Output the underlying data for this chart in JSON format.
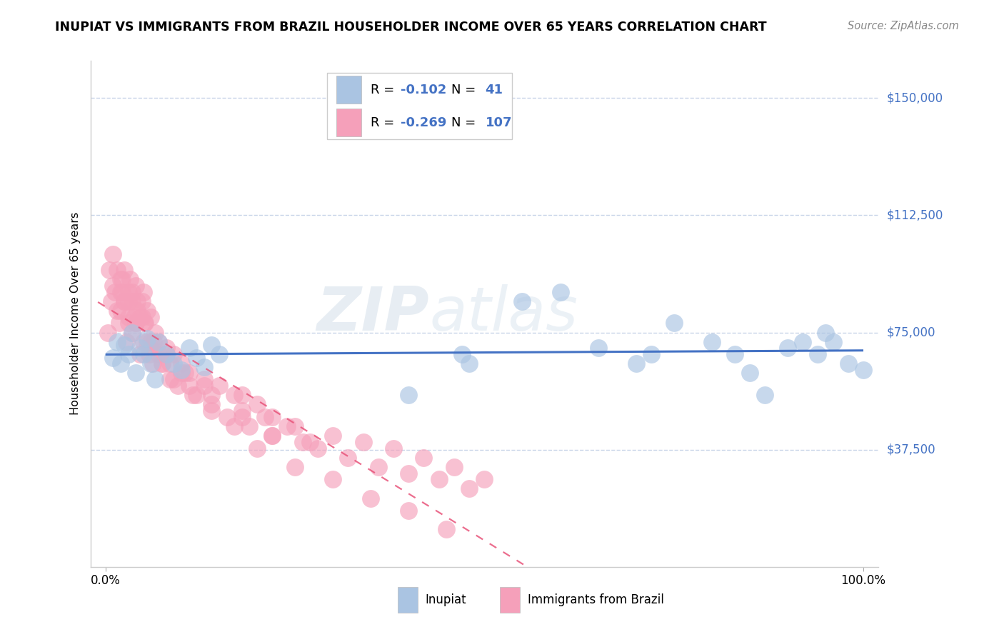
{
  "title": "INUPIAT VS IMMIGRANTS FROM BRAZIL HOUSEHOLDER INCOME OVER 65 YEARS CORRELATION CHART",
  "source": "Source: ZipAtlas.com",
  "ylabel": "Householder Income Over 65 years",
  "legend_label1": "Inupiat",
  "legend_label2": "Immigrants from Brazil",
  "r1": "-0.102",
  "n1": "41",
  "r2": "-0.269",
  "n2": "107",
  "ytick_labels": [
    "$37,500",
    "$75,000",
    "$112,500",
    "$150,000"
  ],
  "ytick_values": [
    37500,
    75000,
    112500,
    150000
  ],
  "ylim": [
    0,
    162000
  ],
  "xlim": [
    -2,
    102
  ],
  "color_inupiat": "#aac4e2",
  "color_brazil": "#f5a0ba",
  "line_color_inupiat": "#4472c4",
  "line_color_brazil": "#e8547a",
  "background_color": "#ffffff",
  "watermark": "ZIPatlas",
  "accent_color": "#4472c4",
  "grid_color": "#c8d4e8",
  "inupiat_x": [
    1.0,
    1.5,
    2.0,
    2.5,
    3.0,
    3.5,
    4.0,
    4.5,
    5.0,
    5.5,
    6.0,
    6.5,
    7.0,
    8.0,
    9.0,
    10.0,
    11.0,
    12.0,
    13.0,
    14.0,
    15.0,
    40.0,
    47.0,
    48.0,
    55.0,
    60.0,
    65.0,
    70.0,
    72.0,
    75.0,
    80.0,
    83.0,
    85.0,
    87.0,
    90.0,
    92.0,
    94.0,
    95.0,
    96.0,
    98.0,
    100.0
  ],
  "inupiat_y": [
    67000,
    72000,
    65000,
    71000,
    68000,
    75000,
    62000,
    70000,
    68000,
    73000,
    65000,
    60000,
    72000,
    68000,
    65000,
    63000,
    70000,
    67000,
    64000,
    71000,
    68000,
    55000,
    68000,
    65000,
    85000,
    88000,
    70000,
    65000,
    68000,
    78000,
    72000,
    68000,
    62000,
    55000,
    70000,
    72000,
    68000,
    75000,
    72000,
    65000,
    63000
  ],
  "brazil_x": [
    0.3,
    0.5,
    0.8,
    1.0,
    1.0,
    1.2,
    1.5,
    1.5,
    1.8,
    2.0,
    2.0,
    2.2,
    2.5,
    2.5,
    2.8,
    3.0,
    3.0,
    3.2,
    3.5,
    3.5,
    3.8,
    4.0,
    4.0,
    4.2,
    4.5,
    4.5,
    4.8,
    5.0,
    5.0,
    5.2,
    5.5,
    5.5,
    5.8,
    6.0,
    6.0,
    6.2,
    6.5,
    7.0,
    7.5,
    8.0,
    8.5,
    9.0,
    9.5,
    10.0,
    10.5,
    11.0,
    12.0,
    13.0,
    14.0,
    15.0,
    16.0,
    17.0,
    18.0,
    19.0,
    20.0,
    21.0,
    22.0,
    24.0,
    26.0,
    28.0,
    30.0,
    32.0,
    34.0,
    36.0,
    38.0,
    40.0,
    42.0,
    44.0,
    46.0,
    48.0,
    50.0,
    25.0,
    27.0,
    18.0,
    22.0,
    11.0,
    13.0,
    7.0,
    8.5,
    4.2,
    5.1,
    6.3,
    3.5,
    4.8,
    2.2,
    3.0,
    7.5,
    9.0,
    11.5,
    14.0,
    17.0,
    20.0,
    25.0,
    30.0,
    35.0,
    40.0,
    45.0,
    22.0,
    18.0,
    14.0,
    10.0,
    8.0,
    6.0,
    4.0,
    3.0,
    2.5,
    2.0
  ],
  "brazil_y": [
    75000,
    95000,
    85000,
    90000,
    100000,
    88000,
    82000,
    95000,
    78000,
    92000,
    82000,
    88000,
    95000,
    85000,
    72000,
    88000,
    78000,
    92000,
    85000,
    75000,
    80000,
    90000,
    78000,
    85000,
    80000,
    68000,
    85000,
    72000,
    88000,
    78000,
    82000,
    72000,
    68000,
    80000,
    70000,
    65000,
    75000,
    72000,
    65000,
    70000,
    60000,
    68000,
    58000,
    65000,
    62000,
    58000,
    55000,
    60000,
    52000,
    58000,
    48000,
    55000,
    50000,
    45000,
    52000,
    48000,
    42000,
    45000,
    40000,
    38000,
    42000,
    35000,
    40000,
    32000,
    38000,
    30000,
    35000,
    28000,
    32000,
    25000,
    28000,
    45000,
    40000,
    55000,
    48000,
    62000,
    58000,
    68000,
    65000,
    82000,
    78000,
    72000,
    88000,
    80000,
    92000,
    85000,
    65000,
    60000,
    55000,
    50000,
    45000,
    38000,
    32000,
    28000,
    22000,
    18000,
    12000,
    42000,
    48000,
    55000,
    62000,
    68000,
    72000,
    78000,
    80000,
    85000,
    88000
  ]
}
